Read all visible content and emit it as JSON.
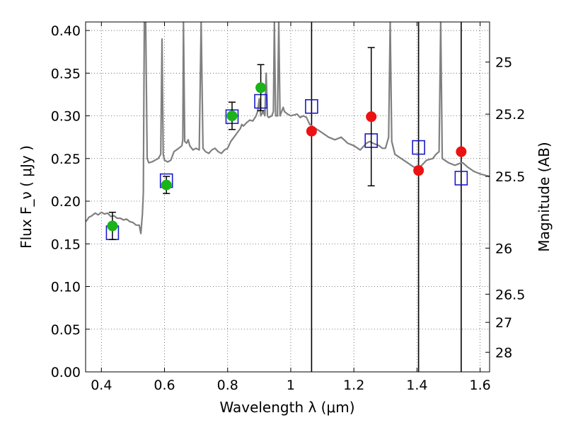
{
  "chart_data": {
    "type": "scatter",
    "title": "",
    "xlabel": "Wavelength  λ (μm)",
    "ylabel": "Flux  F_ν  ( μJy )",
    "ylabel_right": "Magnitude (AB)",
    "xlim": [
      0.35,
      1.63
    ],
    "ylim": [
      0.0,
      0.41
    ],
    "grid": true,
    "x_ticks": [
      0.4,
      0.6,
      0.8,
      1.0,
      1.2,
      1.4,
      1.6
    ],
    "x_tick_labels": [
      "0.4",
      "0.6",
      "0.8",
      "1",
      "1.2",
      "1.4",
      "1.6"
    ],
    "y_ticks": [
      0.0,
      0.05,
      0.1,
      0.15,
      0.2,
      0.25,
      0.3,
      0.35,
      0.4
    ],
    "y_tick_labels": [
      "0.00",
      "0.05",
      "0.10",
      "0.15",
      "0.20",
      "0.25",
      "0.30",
      "0.35",
      "0.40"
    ],
    "right_ticks": [
      {
        "mag": "25",
        "flux": 0.363
      },
      {
        "mag": "25.2",
        "flux": 0.302
      },
      {
        "mag": "25.5",
        "flux": 0.229
      },
      {
        "mag": "26",
        "flux": 0.145
      },
      {
        "mag": "26.5",
        "flux": 0.091
      },
      {
        "mag": "27",
        "flux": 0.058
      },
      {
        "mag": "28",
        "flux": 0.023
      }
    ],
    "vertical_lines": [
      1.066,
      1.405,
      1.54
    ],
    "colors": {
      "model": "#808080",
      "observed_optical": "#1ab31a",
      "observed_nir": "#ee1111",
      "model_photometry": "#1a1acc",
      "grid": "#555555"
    },
    "series": [
      {
        "kind": "spectrum",
        "points": [
          [
            0.35,
            0.176
          ],
          [
            0.355,
            0.178
          ],
          [
            0.36,
            0.181
          ],
          [
            0.37,
            0.183
          ],
          [
            0.38,
            0.186
          ],
          [
            0.39,
            0.184
          ],
          [
            0.4,
            0.187
          ],
          [
            0.41,
            0.185
          ],
          [
            0.42,
            0.186
          ],
          [
            0.43,
            0.182
          ],
          [
            0.44,
            0.183
          ],
          [
            0.45,
            0.18
          ],
          [
            0.46,
            0.18
          ],
          [
            0.47,
            0.178
          ],
          [
            0.48,
            0.179
          ],
          [
            0.49,
            0.176
          ],
          [
            0.5,
            0.175
          ],
          [
            0.51,
            0.172
          ],
          [
            0.52,
            0.172
          ],
          [
            0.525,
            0.162
          ],
          [
            0.53,
            0.185
          ],
          [
            0.533,
            0.21
          ],
          [
            0.536,
            0.41
          ],
          [
            0.54,
            0.42
          ],
          [
            0.545,
            0.25
          ],
          [
            0.55,
            0.245
          ],
          [
            0.56,
            0.246
          ],
          [
            0.57,
            0.248
          ],
          [
            0.58,
            0.25
          ],
          [
            0.588,
            0.255
          ],
          [
            0.592,
            0.39
          ],
          [
            0.596,
            0.255
          ],
          [
            0.6,
            0.248
          ],
          [
            0.61,
            0.246
          ],
          [
            0.62,
            0.248
          ],
          [
            0.63,
            0.258
          ],
          [
            0.645,
            0.262
          ],
          [
            0.655,
            0.265
          ],
          [
            0.658,
            0.272
          ],
          [
            0.66,
            0.41
          ],
          [
            0.664,
            0.27
          ],
          [
            0.67,
            0.268
          ],
          [
            0.675,
            0.272
          ],
          [
            0.68,
            0.265
          ],
          [
            0.69,
            0.26
          ],
          [
            0.7,
            0.262
          ],
          [
            0.71,
            0.26
          ],
          [
            0.716,
            0.41
          ],
          [
            0.722,
            0.262
          ],
          [
            0.73,
            0.258
          ],
          [
            0.74,
            0.256
          ],
          [
            0.75,
            0.26
          ],
          [
            0.76,
            0.262
          ],
          [
            0.77,
            0.258
          ],
          [
            0.78,
            0.256
          ],
          [
            0.79,
            0.26
          ],
          [
            0.8,
            0.262
          ],
          [
            0.81,
            0.27
          ],
          [
            0.82,
            0.275
          ],
          [
            0.83,
            0.28
          ],
          [
            0.84,
            0.285
          ],
          [
            0.845,
            0.29
          ],
          [
            0.85,
            0.288
          ],
          [
            0.86,
            0.292
          ],
          [
            0.87,
            0.295
          ],
          [
            0.88,
            0.294
          ],
          [
            0.89,
            0.3
          ],
          [
            0.895,
            0.305
          ],
          [
            0.9,
            0.32
          ],
          [
            0.905,
            0.3
          ],
          [
            0.912,
            0.305
          ],
          [
            0.918,
            0.3
          ],
          [
            0.922,
            0.35
          ],
          [
            0.926,
            0.3
          ],
          [
            0.93,
            0.298
          ],
          [
            0.94,
            0.3
          ],
          [
            0.945,
            0.305
          ],
          [
            0.948,
            0.41
          ],
          [
            0.952,
            0.3
          ],
          [
            0.958,
            0.3
          ],
          [
            0.962,
            0.41
          ],
          [
            0.966,
            0.3
          ],
          [
            0.97,
            0.304
          ],
          [
            0.976,
            0.31
          ],
          [
            0.98,
            0.305
          ],
          [
            0.99,
            0.302
          ],
          [
            1.0,
            0.3
          ],
          [
            1.02,
            0.302
          ],
          [
            1.03,
            0.298
          ],
          [
            1.04,
            0.3
          ],
          [
            1.05,
            0.298
          ],
          [
            1.06,
            0.29
          ],
          [
            1.08,
            0.285
          ],
          [
            1.1,
            0.28
          ],
          [
            1.12,
            0.275
          ],
          [
            1.14,
            0.272
          ],
          [
            1.16,
            0.275
          ],
          [
            1.18,
            0.268
          ],
          [
            1.2,
            0.265
          ],
          [
            1.22,
            0.26
          ],
          [
            1.24,
            0.268
          ],
          [
            1.25,
            0.27
          ],
          [
            1.26,
            0.268
          ],
          [
            1.28,
            0.265
          ],
          [
            1.29,
            0.262
          ],
          [
            1.3,
            0.262
          ],
          [
            1.31,
            0.275
          ],
          [
            1.315,
            0.41
          ],
          [
            1.32,
            0.27
          ],
          [
            1.33,
            0.255
          ],
          [
            1.35,
            0.25
          ],
          [
            1.37,
            0.245
          ],
          [
            1.39,
            0.24
          ],
          [
            1.41,
            0.24
          ],
          [
            1.43,
            0.248
          ],
          [
            1.45,
            0.25
          ],
          [
            1.46,
            0.255
          ],
          [
            1.47,
            0.258
          ],
          [
            1.475,
            0.41
          ],
          [
            1.48,
            0.25
          ],
          [
            1.5,
            0.245
          ],
          [
            1.52,
            0.242
          ],
          [
            1.54,
            0.245
          ],
          [
            1.545,
            0.245
          ],
          [
            1.56,
            0.24
          ],
          [
            1.58,
            0.235
          ],
          [
            1.6,
            0.232
          ],
          [
            1.62,
            0.23
          ],
          [
            1.63,
            0.229
          ]
        ]
      },
      {
        "kind": "observed_optical",
        "points": [
          {
            "x": 0.435,
            "y": 0.171,
            "err": 0.016
          },
          {
            "x": 0.606,
            "y": 0.219,
            "err": 0.01
          },
          {
            "x": 0.814,
            "y": 0.3,
            "err": 0.016
          },
          {
            "x": 0.905,
            "y": 0.333,
            "err": 0.027
          }
        ]
      },
      {
        "kind": "observed_nir",
        "points": [
          {
            "x": 1.066,
            "y": 0.282
          },
          {
            "x": 1.255,
            "y": 0.299,
            "err": 0.081
          },
          {
            "x": 1.405,
            "y": 0.236
          },
          {
            "x": 1.54,
            "y": 0.258
          }
        ]
      },
      {
        "kind": "model_photometry",
        "points": [
          {
            "x": 0.435,
            "y": 0.163
          },
          {
            "x": 0.606,
            "y": 0.224
          },
          {
            "x": 0.814,
            "y": 0.299
          },
          {
            "x": 0.905,
            "y": 0.317
          },
          {
            "x": 1.066,
            "y": 0.311
          },
          {
            "x": 1.255,
            "y": 0.271
          },
          {
            "x": 1.405,
            "y": 0.263
          },
          {
            "x": 1.54,
            "y": 0.227
          }
        ]
      }
    ]
  }
}
